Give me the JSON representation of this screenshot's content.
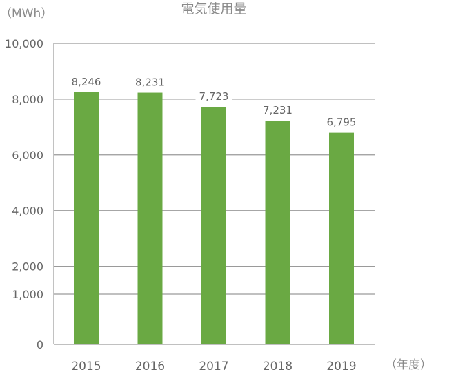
{
  "chart_data": {
    "type": "bar",
    "title": "電気使用量",
    "ylabel": "（MWh）",
    "xlabel": "（年度）",
    "categories": [
      "2015",
      "2016",
      "2017",
      "2018",
      "2019"
    ],
    "values": [
      8246,
      8231,
      7723,
      7231,
      6795
    ],
    "data_labels": [
      "8,246",
      "8,231",
      "7,723",
      "7,231",
      "6,795"
    ],
    "y_ticks": [
      {
        "value": 0,
        "label": "0"
      },
      {
        "value": 1000,
        "label": "1,000"
      },
      {
        "value": 2000,
        "label": "2,000"
      },
      {
        "value": 4000,
        "label": "4,000"
      },
      {
        "value": 6000,
        "label": "6,000"
      },
      {
        "value": 8000,
        "label": "8,000"
      },
      {
        "value": 10000,
        "label": "10,000"
      }
    ],
    "axis_note": "broken y-axis scale: 0–1,000 interval compressed relative to upper intervals",
    "grid": true,
    "bar_color": "#6aa943"
  }
}
